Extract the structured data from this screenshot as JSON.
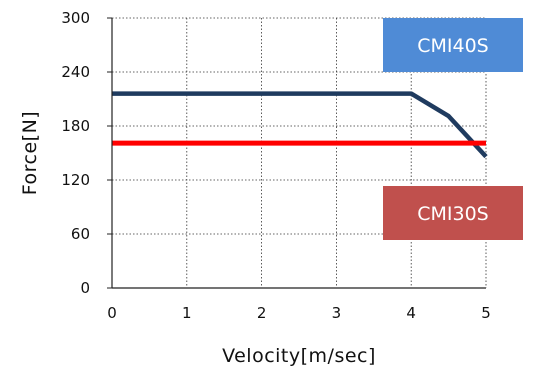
{
  "chart_data": {
    "type": "line",
    "xlabel": "Velocity[m/sec]",
    "ylabel": "Force[N]",
    "xlim": [
      0,
      5
    ],
    "ylim": [
      0,
      300
    ],
    "x_ticks": [
      0,
      1,
      2,
      3,
      4,
      5
    ],
    "y_ticks": [
      0,
      60,
      120,
      180,
      240,
      300
    ],
    "grid": "dotted",
    "series": [
      {
        "name": "CMI40S",
        "color": "#1f3b5f",
        "legend_color": "#4f8bd6",
        "points": [
          [
            0,
            216
          ],
          [
            4.0,
            216
          ],
          [
            4.5,
            191
          ],
          [
            5.0,
            146
          ]
        ]
      },
      {
        "name": "CMI30S",
        "color": "#ff0000",
        "legend_color": "#c0504d",
        "points": [
          [
            0,
            161
          ],
          [
            5.0,
            161
          ]
        ]
      }
    ],
    "legend_positions": [
      "top-right",
      "bottom-right"
    ]
  }
}
